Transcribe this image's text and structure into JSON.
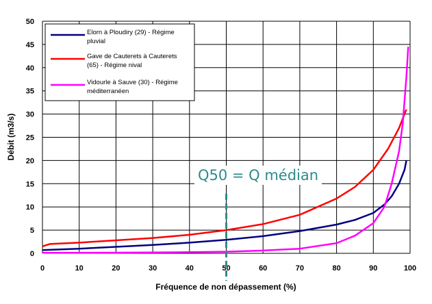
{
  "chart_data": {
    "type": "line",
    "xlabel": "Fréquence de non dépassement (%)",
    "ylabel": "Débit (m3/s)",
    "xlim": [
      0,
      100
    ],
    "ylim": [
      0,
      50
    ],
    "xticks": [
      "0",
      "10",
      "20",
      "30",
      "40",
      "50",
      "60",
      "70",
      "80",
      "90",
      "100"
    ],
    "yticks": [
      "0",
      "5",
      "10",
      "15",
      "20",
      "25",
      "30",
      "35",
      "40",
      "45",
      "50"
    ],
    "grid": true,
    "legend_position": "top-left",
    "series": [
      {
        "name_lines": [
          "Elorn à Ploudiry  (29) - Régime",
          "pluvial"
        ],
        "color": "#000080",
        "points": [
          [
            0,
            0.7
          ],
          [
            10,
            1.0
          ],
          [
            20,
            1.4
          ],
          [
            30,
            1.8
          ],
          [
            40,
            2.3
          ],
          [
            50,
            2.9
          ],
          [
            60,
            3.7
          ],
          [
            70,
            4.8
          ],
          [
            80,
            6.2
          ],
          [
            85,
            7.2
          ],
          [
            90,
            8.7
          ],
          [
            93,
            10.5
          ],
          [
            95,
            12.3
          ],
          [
            97,
            15.0
          ],
          [
            98.5,
            18.0
          ],
          [
            99,
            20.0
          ]
        ]
      },
      {
        "name_lines": [
          "Gave de Cauterets à Cauterets",
          "(65) - Régime nival"
        ],
        "color": "#ff0000",
        "points": [
          [
            0,
            1.5
          ],
          [
            2,
            2.0
          ],
          [
            10,
            2.3
          ],
          [
            20,
            2.8
          ],
          [
            30,
            3.3
          ],
          [
            40,
            4.0
          ],
          [
            50,
            5.0
          ],
          [
            60,
            6.3
          ],
          [
            70,
            8.3
          ],
          [
            80,
            11.8
          ],
          [
            85,
            14.3
          ],
          [
            90,
            18.0
          ],
          [
            94,
            22.5
          ],
          [
            97,
            27.0
          ],
          [
            98.5,
            30.0
          ],
          [
            99,
            31.0
          ]
        ]
      },
      {
        "name_lines": [
          "Vidourle à Sauve (30) - Régime",
          "méditerranéen"
        ],
        "color": "#ff00ff",
        "points": [
          [
            0,
            0.1
          ],
          [
            20,
            0.15
          ],
          [
            40,
            0.25
          ],
          [
            50,
            0.35
          ],
          [
            60,
            0.6
          ],
          [
            70,
            1.0
          ],
          [
            80,
            2.2
          ],
          [
            85,
            3.8
          ],
          [
            90,
            6.5
          ],
          [
            93,
            10.0
          ],
          [
            95,
            15.0
          ],
          [
            97,
            22.0
          ],
          [
            98,
            28.0
          ],
          [
            99,
            38.0
          ],
          [
            99.5,
            44.5
          ]
        ]
      }
    ],
    "annotation": {
      "text": "Q50 = Q médian",
      "x_value": 50,
      "color": "#2e8b8b"
    }
  }
}
